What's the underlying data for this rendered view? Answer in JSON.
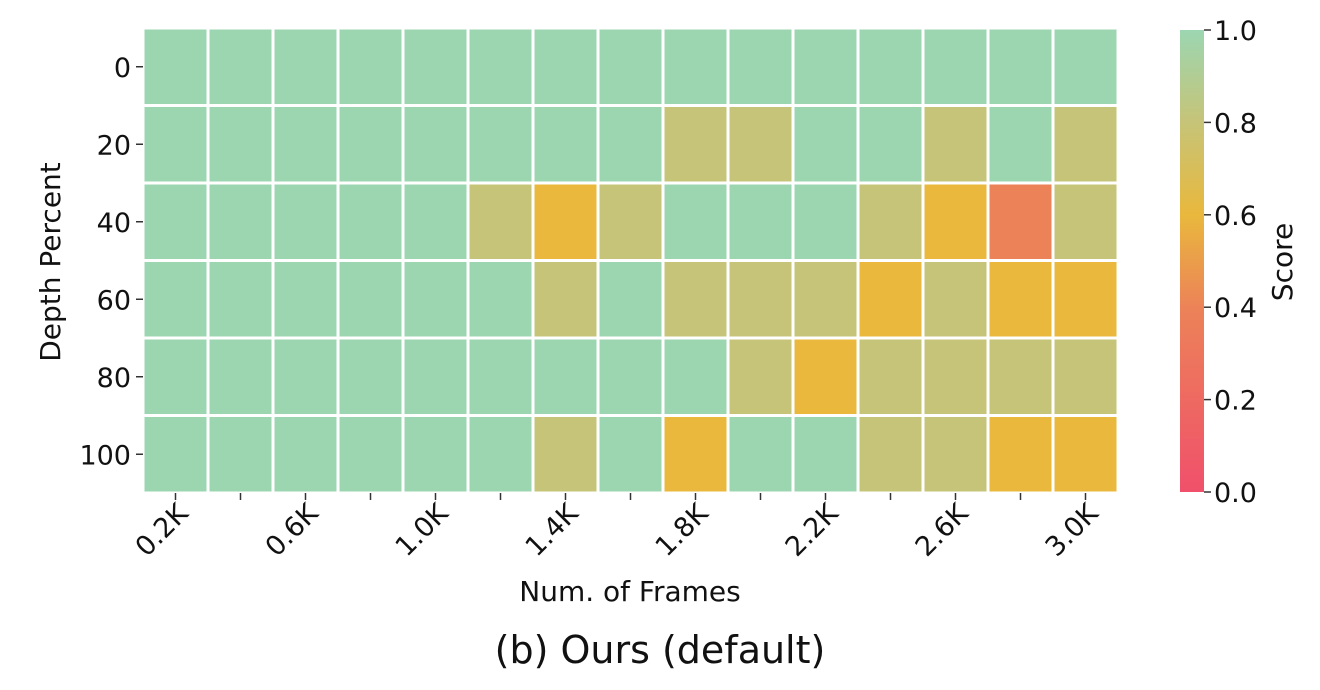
{
  "caption": "(b) Ours (default)",
  "chart_data": {
    "type": "heatmap",
    "xlabel": "Num. of Frames",
    "ylabel": "Depth Percent",
    "x_tick_labels": [
      "0.2K",
      "0.6K",
      "1.0K",
      "1.4K",
      "1.8K",
      "2.2K",
      "2.6K",
      "3.0K"
    ],
    "x_tick_columns": [
      0,
      2,
      4,
      6,
      8,
      10,
      12,
      14
    ],
    "columns": 15,
    "rows": [
      0,
      20,
      40,
      60,
      80,
      100
    ],
    "values": [
      [
        1,
        1,
        1,
        1,
        1,
        1,
        1,
        1,
        1,
        1,
        1,
        1,
        1,
        1,
        1
      ],
      [
        1,
        1,
        1,
        1,
        1,
        1,
        1,
        1,
        0.8,
        0.8,
        1,
        1,
        0.8,
        1,
        0.8
      ],
      [
        1,
        1,
        1,
        1,
        1,
        0.8,
        0.6,
        0.8,
        1,
        1,
        1,
        0.8,
        0.6,
        0.4,
        0.8
      ],
      [
        1,
        1,
        1,
        1,
        1,
        1,
        0.8,
        1,
        0.8,
        0.8,
        0.8,
        0.6,
        0.8,
        0.6,
        0.6
      ],
      [
        1,
        1,
        1,
        1,
        1,
        1,
        1,
        1,
        1,
        0.8,
        0.6,
        0.8,
        0.8,
        0.8,
        0.8
      ],
      [
        1,
        1,
        1,
        1,
        1,
        1,
        0.8,
        1,
        0.6,
        1,
        1,
        0.8,
        0.8,
        0.6,
        0.6
      ]
    ],
    "colorbar": {
      "label": "Score",
      "range": [
        0,
        1
      ],
      "ticks": [
        "0.0",
        "0.2",
        "0.4",
        "0.6",
        "0.8",
        "1.0"
      ]
    },
    "colors": {
      "1.0": "#9cd6b1",
      "0.8": "#c6c478",
      "0.6": "#e9b83d",
      "0.4": "#ec8358",
      "0.0": "#f0506b",
      "grid_lines": "#ffffff"
    }
  }
}
